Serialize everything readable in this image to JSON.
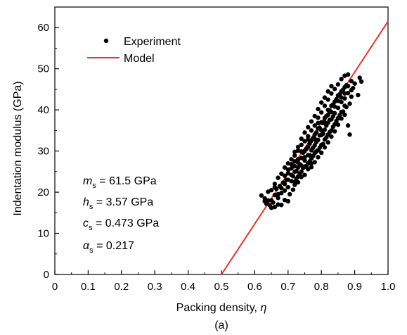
{
  "chart_data": {
    "type": "scatter",
    "xlabel": "Packing density, ",
    "xlabel_symbol": "η",
    "ylabel": "Indentation modulus (GPa)",
    "caption": "(a)",
    "xlim": [
      0,
      1.0
    ],
    "ylim": [
      0,
      65
    ],
    "x_ticks": [
      "0",
      "0.1",
      "0.2",
      "0.3",
      "0.4",
      "0.5",
      "0.6",
      "0.7",
      "0.8",
      "0.9",
      "1.0"
    ],
    "y_ticks": [
      "0",
      "10",
      "20",
      "30",
      "40",
      "50",
      "60"
    ],
    "x_tick_values": [
      0,
      0.1,
      0.2,
      0.3,
      0.4,
      0.5,
      0.6,
      0.7,
      0.8,
      0.9,
      1.0
    ],
    "y_tick_values": [
      0,
      10,
      20,
      30,
      40,
      50,
      60
    ],
    "legend": {
      "placement": "top-left",
      "entries": [
        {
          "label": "Experiment",
          "kind": "marker",
          "color": "#000000"
        },
        {
          "label": "Model",
          "kind": "line",
          "color": "#e8322a"
        }
      ]
    },
    "series": [
      {
        "name": "Model",
        "kind": "line",
        "color": "#e8322a",
        "x": [
          0.5,
          1.0
        ],
        "y": [
          0,
          61.5
        ]
      },
      {
        "name": "Experiment",
        "kind": "scatter",
        "color": "#000000",
        "points": [
          [
            0.62,
            19.2
          ],
          [
            0.63,
            18.5
          ],
          [
            0.635,
            17.2
          ],
          [
            0.64,
            20.1
          ],
          [
            0.645,
            16.8
          ],
          [
            0.65,
            16.2
          ],
          [
            0.65,
            18.0
          ],
          [
            0.655,
            17.5
          ],
          [
            0.66,
            16.4
          ],
          [
            0.66,
            19.3
          ],
          [
            0.665,
            20.8
          ],
          [
            0.67,
            17.0
          ],
          [
            0.67,
            18.6
          ],
          [
            0.675,
            21.5
          ],
          [
            0.68,
            16.9
          ],
          [
            0.68,
            19.8
          ],
          [
            0.685,
            22.3
          ],
          [
            0.69,
            18.1
          ],
          [
            0.69,
            20.4
          ],
          [
            0.695,
            23.0
          ],
          [
            0.7,
            17.8
          ],
          [
            0.7,
            21.2
          ],
          [
            0.7,
            24.6
          ],
          [
            0.705,
            19.5
          ],
          [
            0.71,
            22.7
          ],
          [
            0.71,
            25.8
          ],
          [
            0.715,
            20.6
          ],
          [
            0.715,
            23.9
          ],
          [
            0.72,
            21.8
          ],
          [
            0.72,
            26.3
          ],
          [
            0.72,
            28.9
          ],
          [
            0.725,
            23.3
          ],
          [
            0.725,
            25.1
          ],
          [
            0.73,
            22.4
          ],
          [
            0.73,
            27.2
          ],
          [
            0.73,
            30.1
          ],
          [
            0.735,
            24.5
          ],
          [
            0.735,
            26.8
          ],
          [
            0.74,
            23.7
          ],
          [
            0.74,
            28.3
          ],
          [
            0.74,
            31.5
          ],
          [
            0.745,
            25.9
          ],
          [
            0.745,
            29.6
          ],
          [
            0.75,
            24.2
          ],
          [
            0.75,
            27.7
          ],
          [
            0.75,
            32.4
          ],
          [
            0.755,
            26.4
          ],
          [
            0.755,
            30.5
          ],
          [
            0.76,
            25.6
          ],
          [
            0.76,
            29.0
          ],
          [
            0.76,
            33.6
          ],
          [
            0.765,
            27.5
          ],
          [
            0.765,
            31.8
          ],
          [
            0.77,
            26.1
          ],
          [
            0.77,
            30.2
          ],
          [
            0.77,
            35.0
          ],
          [
            0.775,
            28.8
          ],
          [
            0.775,
            33.1
          ],
          [
            0.78,
            27.3
          ],
          [
            0.78,
            31.4
          ],
          [
            0.78,
            36.2
          ],
          [
            0.785,
            29.9
          ],
          [
            0.785,
            34.5
          ],
          [
            0.79,
            28.5
          ],
          [
            0.79,
            32.7
          ],
          [
            0.79,
            38.1
          ],
          [
            0.795,
            30.8
          ],
          [
            0.795,
            35.6
          ],
          [
            0.8,
            29.6
          ],
          [
            0.8,
            33.9
          ],
          [
            0.8,
            39.4
          ],
          [
            0.805,
            31.7
          ],
          [
            0.805,
            36.8
          ],
          [
            0.81,
            30.9
          ],
          [
            0.81,
            35.2
          ],
          [
            0.81,
            41.0
          ],
          [
            0.815,
            33.3
          ],
          [
            0.815,
            38.5
          ],
          [
            0.82,
            32.1
          ],
          [
            0.82,
            36.9
          ],
          [
            0.82,
            42.5
          ],
          [
            0.825,
            34.6
          ],
          [
            0.825,
            39.8
          ],
          [
            0.83,
            33.5
          ],
          [
            0.83,
            37.7
          ],
          [
            0.83,
            44.0
          ],
          [
            0.835,
            35.9
          ],
          [
            0.835,
            41.3
          ],
          [
            0.84,
            34.8
          ],
          [
            0.84,
            39.2
          ],
          [
            0.84,
            45.1
          ],
          [
            0.845,
            37.3
          ],
          [
            0.845,
            42.6
          ],
          [
            0.85,
            36.4
          ],
          [
            0.85,
            40.5
          ],
          [
            0.85,
            46.2
          ],
          [
            0.855,
            38.7
          ],
          [
            0.855,
            43.8
          ],
          [
            0.86,
            37.9
          ],
          [
            0.86,
            41.9
          ],
          [
            0.86,
            47.5
          ],
          [
            0.865,
            39.6
          ],
          [
            0.865,
            44.9
          ],
          [
            0.87,
            38.8
          ],
          [
            0.87,
            42.8
          ],
          [
            0.87,
            48.3
          ],
          [
            0.875,
            40.7
          ],
          [
            0.875,
            46.0
          ],
          [
            0.88,
            36.2
          ],
          [
            0.88,
            44.1
          ],
          [
            0.88,
            48.6
          ],
          [
            0.885,
            41.5
          ],
          [
            0.885,
            34.0
          ],
          [
            0.89,
            43.2
          ],
          [
            0.89,
            47.0
          ],
          [
            0.895,
            45.3
          ],
          [
            0.9,
            46.4
          ],
          [
            0.91,
            43.6
          ],
          [
            0.915,
            47.8
          ],
          [
            0.92,
            46.9
          ],
          [
            0.68,
            21.0
          ],
          [
            0.69,
            22.0
          ],
          [
            0.7,
            23.0
          ],
          [
            0.71,
            24.2
          ],
          [
            0.72,
            25.0
          ],
          [
            0.73,
            26.0
          ],
          [
            0.74,
            26.5
          ],
          [
            0.75,
            28.5
          ],
          [
            0.76,
            31.0
          ],
          [
            0.77,
            32.5
          ],
          [
            0.78,
            34.0
          ],
          [
            0.79,
            35.5
          ],
          [
            0.8,
            37.0
          ],
          [
            0.81,
            38.0
          ],
          [
            0.82,
            40.0
          ],
          [
            0.83,
            41.0
          ],
          [
            0.84,
            42.0
          ],
          [
            0.85,
            43.5
          ],
          [
            0.86,
            44.5
          ],
          [
            0.87,
            45.5
          ],
          [
            0.66,
            22.0
          ],
          [
            0.67,
            23.5
          ],
          [
            0.68,
            24.5
          ],
          [
            0.69,
            26.0
          ],
          [
            0.7,
            27.0
          ],
          [
            0.71,
            28.0
          ],
          [
            0.72,
            29.8
          ],
          [
            0.73,
            31.0
          ],
          [
            0.74,
            33.0
          ],
          [
            0.75,
            34.5
          ],
          [
            0.76,
            35.8
          ],
          [
            0.77,
            37.2
          ],
          [
            0.78,
            38.5
          ],
          [
            0.79,
            40.2
          ],
          [
            0.8,
            41.8
          ],
          [
            0.81,
            43.0
          ],
          [
            0.82,
            44.5
          ],
          [
            0.83,
            45.8
          ],
          [
            0.72,
            22.5
          ],
          [
            0.73,
            23.8
          ],
          [
            0.74,
            25.0
          ],
          [
            0.75,
            26.2
          ],
          [
            0.76,
            27.0
          ],
          [
            0.77,
            28.2
          ],
          [
            0.78,
            29.5
          ],
          [
            0.79,
            30.2
          ],
          [
            0.8,
            31.5
          ],
          [
            0.81,
            32.8
          ],
          [
            0.82,
            34.0
          ],
          [
            0.83,
            35.0
          ],
          [
            0.84,
            36.5
          ],
          [
            0.85,
            38.0
          ],
          [
            0.86,
            39.5
          ],
          [
            0.87,
            41.0
          ],
          [
            0.65,
            20.5
          ],
          [
            0.66,
            21.2
          ],
          [
            0.67,
            19.5
          ],
          [
            0.64,
            18.0
          ],
          [
            0.63,
            17.8
          ],
          [
            0.75,
            30.0
          ],
          [
            0.76,
            32.8
          ],
          [
            0.77,
            27.0
          ],
          [
            0.78,
            33.0
          ],
          [
            0.79,
            36.8
          ],
          [
            0.73,
            28.0
          ],
          [
            0.74,
            29.9
          ],
          [
            0.72,
            27.5
          ],
          [
            0.71,
            26.8
          ],
          [
            0.7,
            25.5
          ],
          [
            0.69,
            24.0
          ],
          [
            0.8,
            35.0
          ],
          [
            0.81,
            37.0
          ],
          [
            0.82,
            38.8
          ],
          [
            0.83,
            39.5
          ],
          [
            0.84,
            40.8
          ],
          [
            0.85,
            42.2
          ],
          [
            0.86,
            43.0
          ],
          [
            0.87,
            44.0
          ],
          [
            0.88,
            45.8
          ],
          [
            0.89,
            44.8
          ],
          [
            0.765,
            29.0
          ],
          [
            0.775,
            30.8
          ],
          [
            0.785,
            32.2
          ],
          [
            0.795,
            33.8
          ],
          [
            0.805,
            34.2
          ],
          [
            0.815,
            36.2
          ],
          [
            0.825,
            37.6
          ],
          [
            0.835,
            38.4
          ]
        ]
      }
    ],
    "annotations": [
      {
        "symbol": "m",
        "sub": "s",
        "text": " = 61.5 GPa"
      },
      {
        "symbol": "h",
        "sub": "s",
        "text": " = 3.57 GPa"
      },
      {
        "symbol": "c",
        "sub": "s",
        "text": " = 0.473 GPa"
      },
      {
        "symbol": "α",
        "sub": "s",
        "text": " = 0.217"
      }
    ],
    "grid": false
  }
}
